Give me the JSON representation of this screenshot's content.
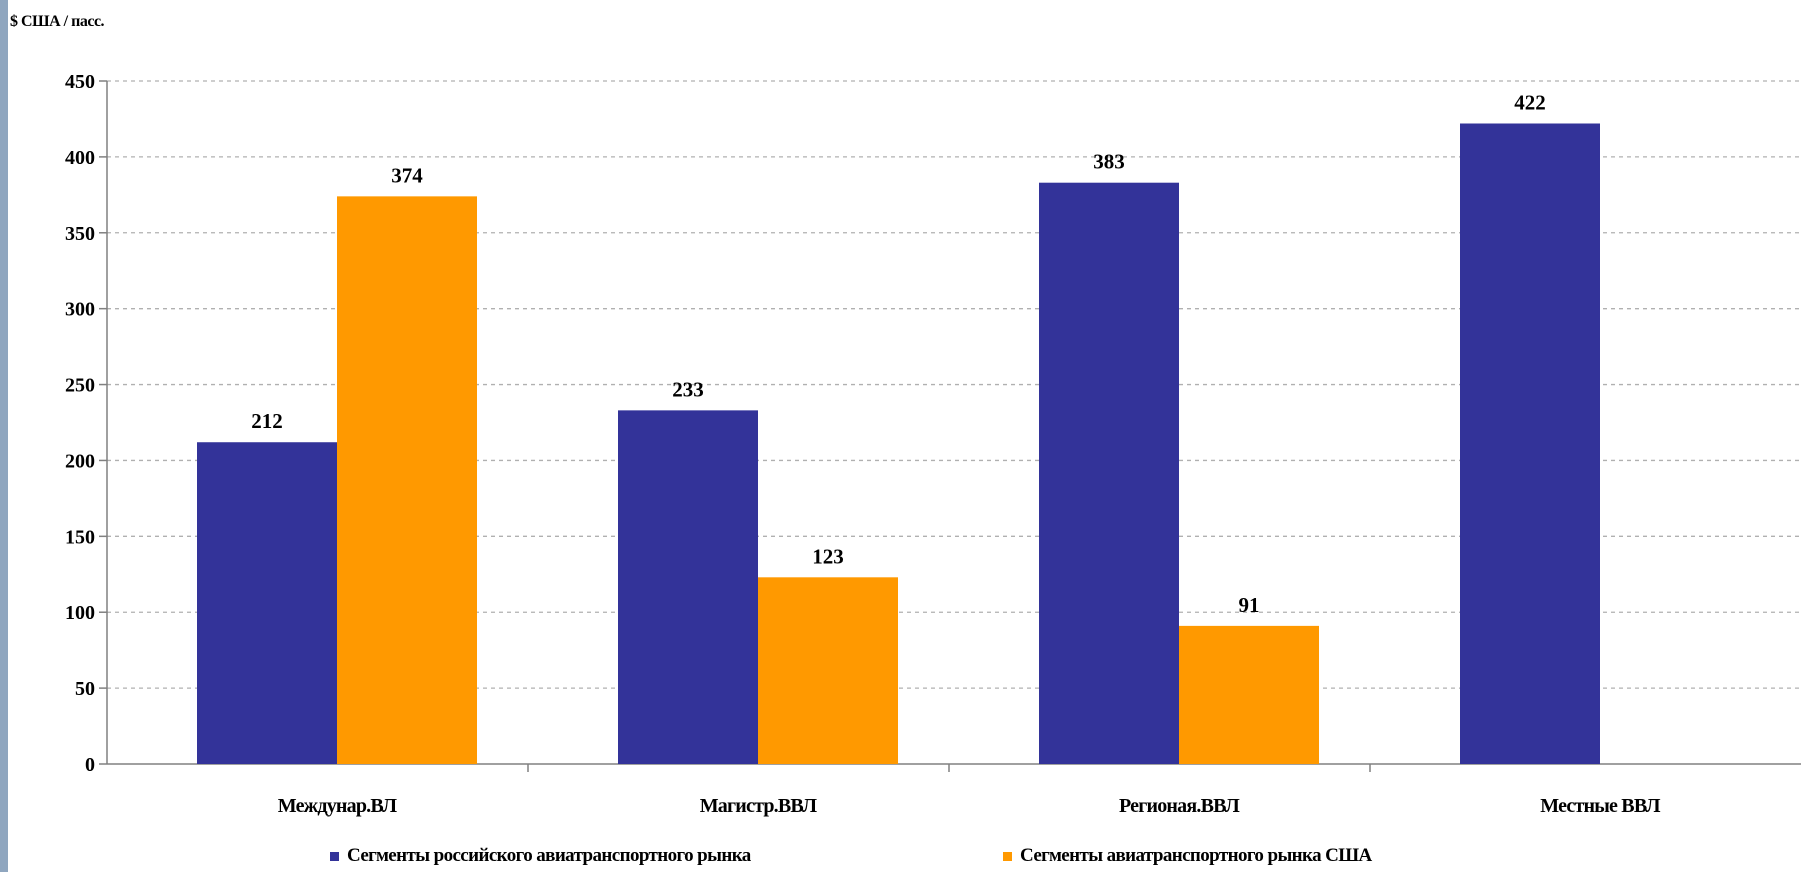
{
  "colors": {
    "series_ru": "#333399",
    "series_us": "#FF9900",
    "grid": "#b0b0b0",
    "axis": "#808080"
  },
  "unit_label": "$ США / пасс.",
  "legend": {
    "items": [
      {
        "label": "Сегменты российского авиатранспортного рынка",
        "color": "#333399"
      },
      {
        "label": "Сегменты авиатранспортного рынка США",
        "color": "#FF9900"
      }
    ]
  },
  "chart_data": {
    "type": "bar",
    "title": "",
    "xlabel": "",
    "ylabel": "$ США / пасс.",
    "categories": [
      "Междунар.ВЛ",
      "Магистр.ВВЛ",
      "Регионая.ВВЛ",
      "Местные ВВЛ"
    ],
    "series": [
      {
        "name": "Сегменты российского авиатранспортного рынка",
        "color": "#333399",
        "values": [
          212,
          233,
          383,
          422
        ]
      },
      {
        "name": "Сегменты авиатранспортного рынка США",
        "color": "#FF9900",
        "values": [
          374,
          123,
          91,
          null
        ]
      }
    ],
    "ylim": [
      0,
      450
    ],
    "yticks": [
      0,
      50,
      100,
      150,
      200,
      250,
      300,
      350,
      400,
      450
    ],
    "grid": true,
    "legend_position": "bottom"
  }
}
